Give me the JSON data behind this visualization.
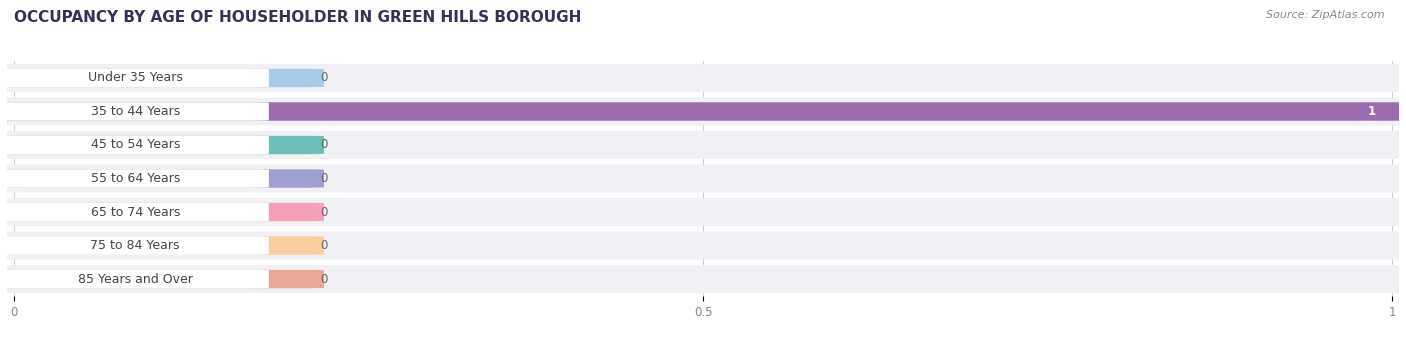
{
  "title": "OCCUPANCY BY AGE OF HOUSEHOLDER IN GREEN HILLS BOROUGH",
  "source": "Source: ZipAtlas.com",
  "categories": [
    "Under 35 Years",
    "35 to 44 Years",
    "45 to 54 Years",
    "55 to 64 Years",
    "65 to 74 Years",
    "75 to 84 Years",
    "85 Years and Over"
  ],
  "values": [
    0,
    1,
    0,
    0,
    0,
    0,
    0
  ],
  "bar_colors": [
    "#a8cce8",
    "#9b6bae",
    "#6dbfb8",
    "#a0a0d0",
    "#f4a0b8",
    "#f8ceA0",
    "#e8a898"
  ],
  "xlim_max": 1.0,
  "xticks": [
    0,
    0.5,
    1
  ],
  "xtick_labels": [
    "0",
    "0.5",
    "1"
  ],
  "title_fontsize": 11,
  "label_fontsize": 9,
  "value_fontsize": 8.5,
  "background_color": "#ffffff",
  "row_bg_color": "#f0f0f5",
  "row_bg_color_alt": "#e8e8f0",
  "grid_color": "#cccccc",
  "label_pill_color": "#ffffff",
  "label_text_color": "#444444",
  "value_text_color_inside": "#ffffff",
  "value_text_color_outside": "#666666",
  "source_color": "#888888",
  "title_color": "#333355"
}
